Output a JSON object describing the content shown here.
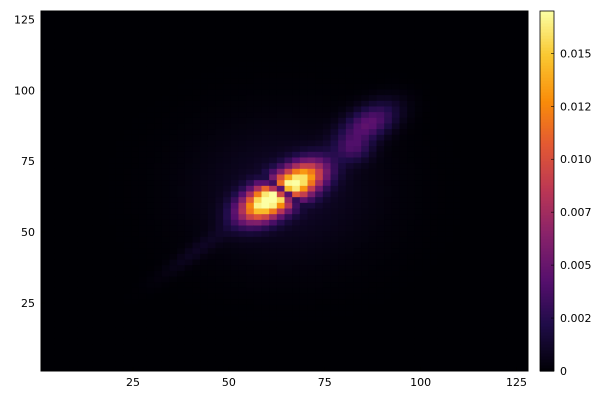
{
  "chart_data": {
    "type": "heatmap",
    "title": "",
    "xlabel": "",
    "ylabel": "",
    "xlim": [
      1,
      128
    ],
    "ylim": [
      1,
      128
    ],
    "x_ticks": [
      "25",
      "50",
      "75",
      "100",
      "125"
    ],
    "y_ticks": [
      "25",
      "50",
      "75",
      "100",
      "125"
    ],
    "colormap": "inferno",
    "colorbar": {
      "range": [
        0,
        0.017
      ],
      "ticks": [
        "0",
        "0.002",
        "0.005",
        "0.007",
        "0.010",
        "0.012",
        "0.015"
      ]
    },
    "grid": false,
    "features": [
      {
        "name": "main lobe",
        "x": 60,
        "y": 61,
        "peak": 0.0165
      },
      {
        "name": "second lobe",
        "x": 69,
        "y": 69,
        "peak": 0.0145
      },
      {
        "name": "upper-right patch",
        "x": 87,
        "y": 89,
        "peak": 0.0045
      },
      {
        "name": "lower-left streak",
        "x": 42,
        "y": 44,
        "peak": 0.0008
      }
    ]
  }
}
